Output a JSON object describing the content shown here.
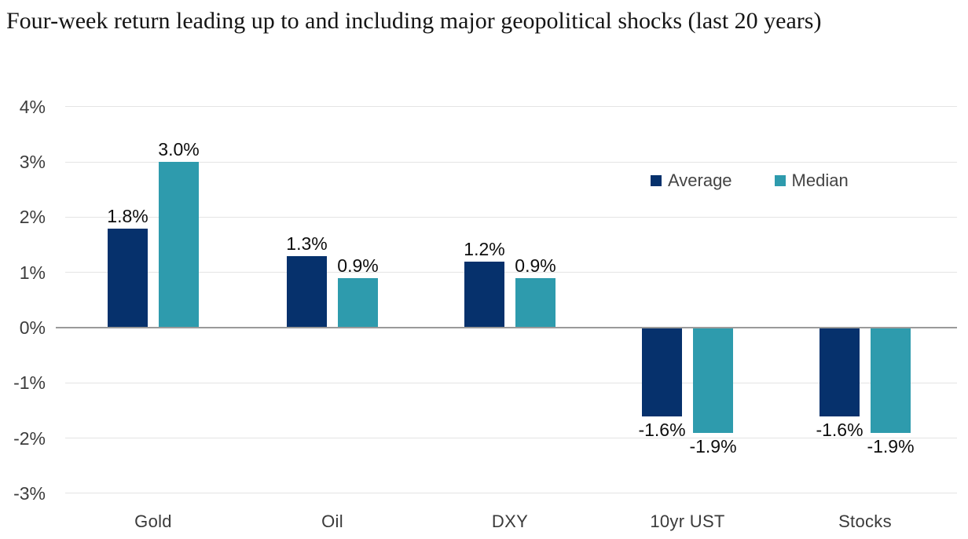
{
  "title": "Four-week return leading up to and including major geopolitical shocks (last 20 years)",
  "chart_data": {
    "type": "bar",
    "title": "Four-week return leading up to and including major geopolitical shocks (last 20 years)",
    "categories": [
      "Gold",
      "Oil",
      "DXY",
      "10yr UST",
      "Stocks"
    ],
    "series": [
      {
        "name": "Average",
        "color": "#06316C",
        "values": [
          1.8,
          1.3,
          1.2,
          -1.6,
          -1.6
        ],
        "labels": [
          "1.8%",
          "1.3%",
          "1.2%",
          "-1.6%",
          "-1.6%"
        ]
      },
      {
        "name": "Median",
        "color": "#2E9BAD",
        "values": [
          3.0,
          0.9,
          0.9,
          -1.9,
          -1.9
        ],
        "labels": [
          "3.0%",
          "0.9%",
          "0.9%",
          "-1.9%",
          "-1.9%"
        ]
      }
    ],
    "unit": "%",
    "y_ticks": [
      4,
      3,
      2,
      1,
      0,
      -1,
      -2,
      -3
    ],
    "y_tick_labels": [
      "4%",
      "3%",
      "2%",
      "1%",
      "0%",
      "-1%",
      "-2%",
      "-3%"
    ],
    "ylim": [
      -3,
      4
    ],
    "grid": true,
    "legend_position": "upper-right-inside",
    "xlabel": "",
    "ylabel": ""
  },
  "colors": {
    "average_bar": "#06316C",
    "median_bar": "#2E9BAD",
    "gridline": "#E4E4E4",
    "zero_line": "#9A9A9A",
    "title_text": "#151515",
    "axis_tick_text": "#3D3D3D",
    "category_text": "#3A3A3A",
    "value_label_text": "#0D0D0D",
    "legend_text": "#444444"
  }
}
